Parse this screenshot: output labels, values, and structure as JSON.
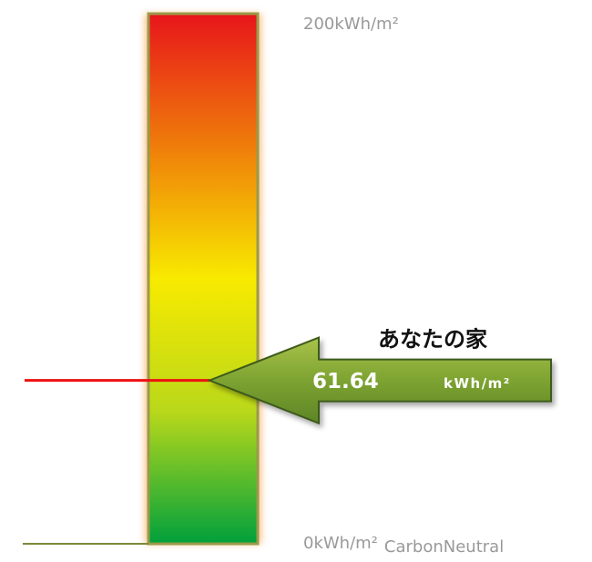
{
  "chart_data": {
    "type": "gauge",
    "ylim": [
      0,
      200
    ],
    "yticks": [
      {
        "value": 0,
        "label": "0kWh/m²"
      },
      {
        "value": 200,
        "label": "200kWh/m²"
      }
    ],
    "annotation": "CarbonNeutral",
    "label": "あなたの家",
    "value": 61.64,
    "unit": "kWh/m²",
    "colors": [
      "#e8151b",
      "#ef7d0a",
      "#f8ea00",
      "#b9d81a",
      "#00a03c"
    ],
    "marker_color": "#ee1111"
  }
}
